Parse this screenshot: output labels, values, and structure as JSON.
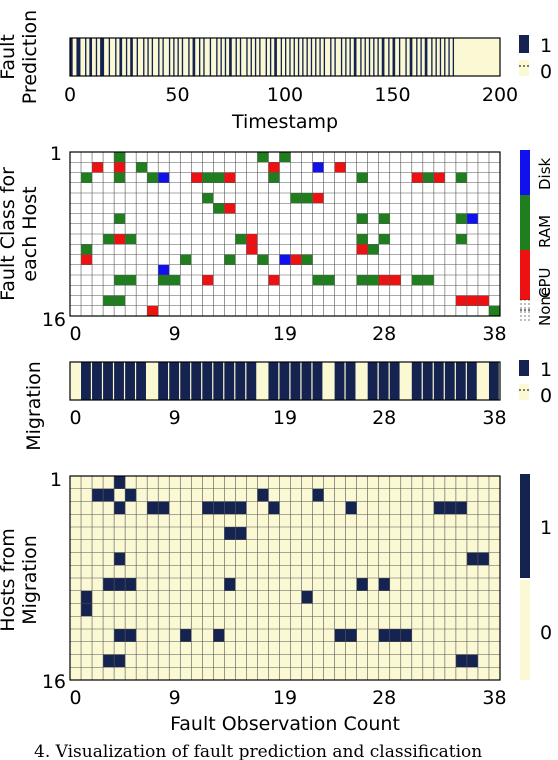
{
  "caption": "4. Visualization of fault prediction and classification",
  "colors": {
    "navy": "#14234f",
    "cream": "#fbf9d4",
    "none": "#ffffff",
    "cpu": "#ee1111",
    "ram": "#1f7f1f",
    "disk": "#1111ee",
    "grid": "#555555"
  },
  "chart_data": [
    {
      "type": "heatmap",
      "id": "fault-prediction",
      "ylabel": "Fault\nPrediction",
      "xlabel": "Timestamp",
      "xticks": [
        "0",
        "50",
        "100",
        "150",
        "200"
      ],
      "xlim": [
        0,
        200
      ],
      "legend": [
        "1",
        "0"
      ],
      "rle": [
        2,
        1,
        3,
        1,
        1,
        1,
        2,
        1,
        1,
        1,
        3,
        1,
        1,
        2,
        1,
        1,
        2,
        1,
        1,
        1,
        2,
        1,
        1,
        2,
        1,
        1,
        1,
        1,
        1,
        2,
        1,
        1,
        1,
        2,
        1,
        1,
        1,
        1,
        1,
        1,
        1,
        2,
        1,
        1,
        2,
        1,
        1,
        1,
        1,
        2,
        1,
        2,
        1,
        1,
        1,
        1,
        1,
        1,
        2,
        1,
        1,
        1,
        1,
        2,
        1,
        1,
        1,
        1,
        1,
        1,
        1,
        2,
        1,
        1,
        1,
        1,
        2,
        1,
        1,
        1,
        1,
        1,
        1,
        1,
        1,
        1,
        1,
        1,
        1,
        1,
        1,
        1,
        1,
        1,
        1,
        1,
        1,
        1,
        1,
        2,
        1,
        1,
        1,
        2,
        1,
        1,
        1,
        1,
        1,
        1,
        2,
        1,
        1,
        1,
        1,
        1,
        1,
        1,
        1,
        1,
        1,
        1,
        2,
        1,
        1,
        1,
        2,
        1,
        1,
        2,
        1,
        1,
        2,
        1,
        1,
        1,
        1,
        1,
        2,
        1,
        1,
        1,
        1,
        1,
        1,
        1,
        1,
        1,
        1,
        1,
        1,
        1
      ]
    },
    {
      "type": "heatmap",
      "id": "fault-class",
      "ylabel": "Fault Class for\neach Host",
      "ytick_top": "1",
      "ytick_bottom": "16",
      "xticks": [
        "0",
        "9",
        "19",
        "28",
        "38"
      ],
      "x_count": 39,
      "y_count": 16,
      "legend": [
        "None",
        "CPU",
        "RAM",
        "Disk"
      ],
      "cells": [
        {
          "x": 4,
          "y": 1,
          "c": "ram"
        },
        {
          "x": 17,
          "y": 1,
          "c": "ram"
        },
        {
          "x": 19,
          "y": 1,
          "c": "ram"
        },
        {
          "x": 2,
          "y": 2,
          "c": "cpu"
        },
        {
          "x": 4,
          "y": 2,
          "c": "cpu"
        },
        {
          "x": 6,
          "y": 2,
          "c": "ram"
        },
        {
          "x": 18,
          "y": 2,
          "c": "cpu"
        },
        {
          "x": 22,
          "y": 2,
          "c": "disk"
        },
        {
          "x": 24,
          "y": 2,
          "c": "cpu"
        },
        {
          "x": 1,
          "y": 3,
          "c": "ram"
        },
        {
          "x": 4,
          "y": 3,
          "c": "ram"
        },
        {
          "x": 7,
          "y": 3,
          "c": "ram"
        },
        {
          "x": 8,
          "y": 3,
          "c": "disk"
        },
        {
          "x": 11,
          "y": 3,
          "c": "cpu"
        },
        {
          "x": 12,
          "y": 3,
          "c": "ram"
        },
        {
          "x": 13,
          "y": 3,
          "c": "ram"
        },
        {
          "x": 14,
          "y": 3,
          "c": "cpu"
        },
        {
          "x": 18,
          "y": 3,
          "c": "ram"
        },
        {
          "x": 26,
          "y": 3,
          "c": "ram"
        },
        {
          "x": 31,
          "y": 3,
          "c": "cpu"
        },
        {
          "x": 32,
          "y": 3,
          "c": "ram"
        },
        {
          "x": 33,
          "y": 3,
          "c": "cpu"
        },
        {
          "x": 35,
          "y": 3,
          "c": "ram"
        },
        {
          "x": 12,
          "y": 5,
          "c": "ram"
        },
        {
          "x": 20,
          "y": 5,
          "c": "ram"
        },
        {
          "x": 21,
          "y": 5,
          "c": "ram"
        },
        {
          "x": 22,
          "y": 5,
          "c": "cpu"
        },
        {
          "x": 13,
          "y": 6,
          "c": "ram"
        },
        {
          "x": 14,
          "y": 6,
          "c": "cpu"
        },
        {
          "x": 4,
          "y": 7,
          "c": "ram"
        },
        {
          "x": 26,
          "y": 7,
          "c": "ram"
        },
        {
          "x": 28,
          "y": 7,
          "c": "ram"
        },
        {
          "x": 35,
          "y": 7,
          "c": "ram"
        },
        {
          "x": 36,
          "y": 7,
          "c": "disk"
        },
        {
          "x": 3,
          "y": 9,
          "c": "ram"
        },
        {
          "x": 4,
          "y": 9,
          "c": "cpu"
        },
        {
          "x": 5,
          "y": 9,
          "c": "ram"
        },
        {
          "x": 15,
          "y": 9,
          "c": "ram"
        },
        {
          "x": 16,
          "y": 9,
          "c": "cpu"
        },
        {
          "x": 26,
          "y": 9,
          "c": "ram"
        },
        {
          "x": 28,
          "y": 9,
          "c": "ram"
        },
        {
          "x": 35,
          "y": 9,
          "c": "ram"
        },
        {
          "x": 1,
          "y": 10,
          "c": "ram"
        },
        {
          "x": 16,
          "y": 10,
          "c": "cpu"
        },
        {
          "x": 26,
          "y": 10,
          "c": "cpu"
        },
        {
          "x": 27,
          "y": 10,
          "c": "ram"
        },
        {
          "x": 1,
          "y": 11,
          "c": "cpu"
        },
        {
          "x": 10,
          "y": 11,
          "c": "ram"
        },
        {
          "x": 14,
          "y": 11,
          "c": "ram"
        },
        {
          "x": 17,
          "y": 11,
          "c": "ram"
        },
        {
          "x": 19,
          "y": 11,
          "c": "disk"
        },
        {
          "x": 20,
          "y": 11,
          "c": "cpu"
        },
        {
          "x": 21,
          "y": 11,
          "c": "ram"
        },
        {
          "x": 8,
          "y": 12,
          "c": "disk"
        },
        {
          "x": 4,
          "y": 13,
          "c": "ram"
        },
        {
          "x": 5,
          "y": 13,
          "c": "ram"
        },
        {
          "x": 8,
          "y": 13,
          "c": "ram"
        },
        {
          "x": 9,
          "y": 13,
          "c": "ram"
        },
        {
          "x": 12,
          "y": 13,
          "c": "cpu"
        },
        {
          "x": 18,
          "y": 13,
          "c": "cpu"
        },
        {
          "x": 22,
          "y": 13,
          "c": "ram"
        },
        {
          "x": 23,
          "y": 13,
          "c": "ram"
        },
        {
          "x": 26,
          "y": 13,
          "c": "ram"
        },
        {
          "x": 27,
          "y": 13,
          "c": "ram"
        },
        {
          "x": 28,
          "y": 13,
          "c": "cpu"
        },
        {
          "x": 29,
          "y": 13,
          "c": "cpu"
        },
        {
          "x": 31,
          "y": 13,
          "c": "ram"
        },
        {
          "x": 32,
          "y": 13,
          "c": "ram"
        },
        {
          "x": 3,
          "y": 15,
          "c": "ram"
        },
        {
          "x": 4,
          "y": 15,
          "c": "ram"
        },
        {
          "x": 35,
          "y": 15,
          "c": "cpu"
        },
        {
          "x": 36,
          "y": 15,
          "c": "cpu"
        },
        {
          "x": 37,
          "y": 15,
          "c": "cpu"
        },
        {
          "x": 7,
          "y": 16,
          "c": "cpu"
        },
        {
          "x": 38,
          "y": 16,
          "c": "ram"
        }
      ]
    },
    {
      "type": "heatmap",
      "id": "migration",
      "ylabel": "Migration",
      "xticks": [
        "0",
        "9",
        "19",
        "28",
        "38"
      ],
      "legend": [
        "1",
        "0"
      ],
      "values": [
        0,
        1,
        1,
        1,
        1,
        1,
        1,
        0,
        1,
        1,
        1,
        1,
        1,
        1,
        1,
        1,
        1,
        0,
        1,
        1,
        1,
        1,
        1,
        0,
        1,
        1,
        0,
        1,
        1,
        1,
        0,
        1,
        1,
        1,
        1,
        1,
        1,
        0,
        1
      ]
    },
    {
      "type": "heatmap",
      "id": "hosts-from-migration",
      "ylabel": "Hosts from\nMigration",
      "xlabel": "Fault Observation Count",
      "ytick_top": "1",
      "ytick_bottom": "16",
      "xticks": [
        "0",
        "9",
        "19",
        "28",
        "38"
      ],
      "legend": [
        "1",
        "0"
      ],
      "cells": [
        [
          4,
          1
        ],
        [
          2,
          2
        ],
        [
          3,
          2
        ],
        [
          5,
          2
        ],
        [
          17,
          2
        ],
        [
          22,
          2
        ],
        [
          4,
          3
        ],
        [
          7,
          3
        ],
        [
          8,
          3
        ],
        [
          12,
          3
        ],
        [
          13,
          3
        ],
        [
          14,
          3
        ],
        [
          15,
          3
        ],
        [
          18,
          3
        ],
        [
          25,
          3
        ],
        [
          33,
          3
        ],
        [
          34,
          3
        ],
        [
          35,
          3
        ],
        [
          14,
          5
        ],
        [
          15,
          5
        ],
        [
          4,
          7
        ],
        [
          36,
          7
        ],
        [
          37,
          7
        ],
        [
          3,
          9
        ],
        [
          4,
          9
        ],
        [
          5,
          9
        ],
        [
          14,
          9
        ],
        [
          26,
          9
        ],
        [
          28,
          9
        ],
        [
          1,
          10
        ],
        [
          21,
          10
        ],
        [
          1,
          11
        ],
        [
          4,
          13
        ],
        [
          5,
          13
        ],
        [
          10,
          13
        ],
        [
          13,
          13
        ],
        [
          24,
          13
        ],
        [
          25,
          13
        ],
        [
          28,
          13
        ],
        [
          29,
          13
        ],
        [
          30,
          13
        ],
        [
          3,
          15
        ],
        [
          4,
          15
        ],
        [
          35,
          15
        ],
        [
          36,
          15
        ]
      ]
    }
  ]
}
